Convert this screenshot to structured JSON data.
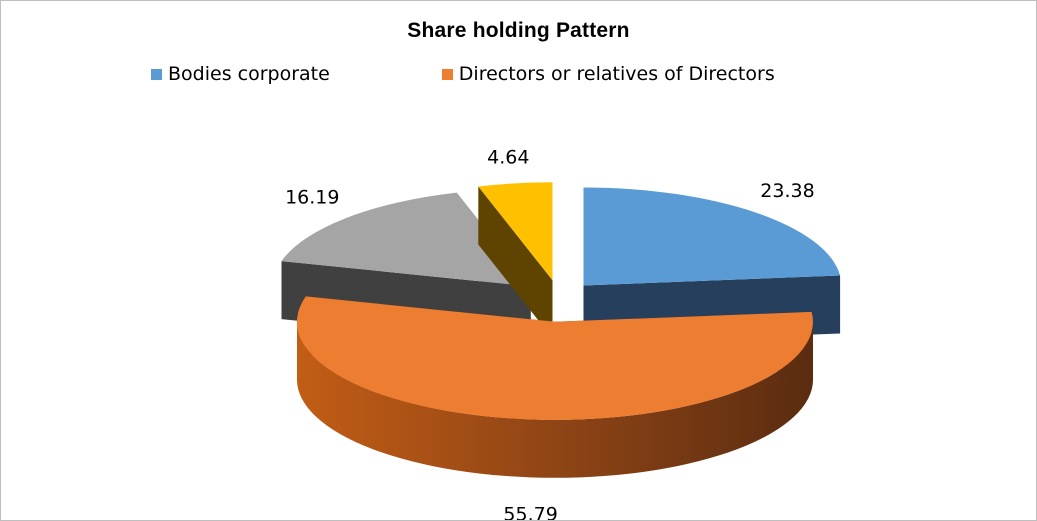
{
  "chart_data": {
    "type": "pie",
    "title": "Share holding  Pattern",
    "categories": [
      "Bodies corporate",
      "Directors or relatives of Directors",
      "",
      ""
    ],
    "values": [
      23.38,
      55.79,
      16.19,
      4.64
    ],
    "data_labels": [
      "23.38",
      "55.79",
      "16.19",
      "4.64"
    ],
    "legend": {
      "placement": "top",
      "entries": [
        {
          "name": "Bodies corporate",
          "color": "#5b9bd5"
        },
        {
          "name": "Directors or relatives of Directors",
          "color": "#ed7d31"
        }
      ]
    },
    "colors": [
      "#5b9bd5",
      "#ed7d31",
      "#a5a5a5",
      "#ffc000"
    ],
    "style": "3d-exploded"
  }
}
